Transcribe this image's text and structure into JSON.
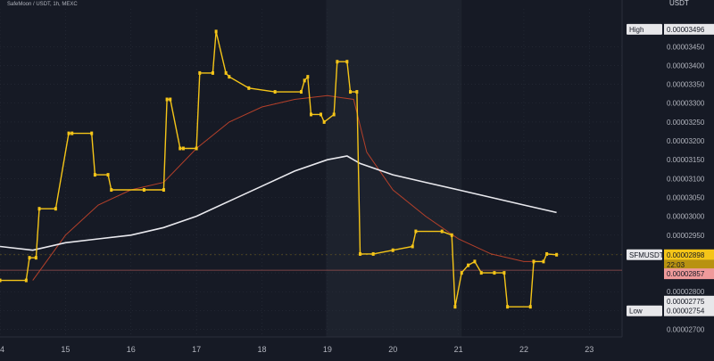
{
  "header": {
    "symbol_line": "SafeMoon / USDT, 1h, MEXC",
    "quote_currency": "USDT"
  },
  "colors": {
    "background": "#161a25",
    "background_highlight": "#1d222d",
    "candle": "#f5c518",
    "ma_fast": "#b5402a",
    "ma_slow": "#e9e9ee",
    "last_price_tag": "#f5c518",
    "ref_price_tag": "#ef9a9a",
    "grid_dots": "#2a2f3b",
    "axis_text": "#b2b5be"
  },
  "chart_data": {
    "type": "line",
    "title": "",
    "xlabel": "",
    "ylabel": "",
    "x_ticks": [
      "14",
      "15",
      "16",
      "17",
      "18",
      "19",
      "20",
      "21",
      "22",
      "23"
    ],
    "y_ticks": [
      "0.00002700",
      "0.00002750",
      "0.00002800",
      "0.00002850",
      "0.00002900",
      "0.00002950",
      "0.00003000",
      "0.00003050",
      "0.00003100",
      "0.00003150",
      "0.00003200",
      "0.00003250",
      "0.00003300",
      "0.00003350",
      "0.00003400",
      "0.00003450"
    ],
    "ylim": [
      2.68e-05,
      3.55e-05
    ],
    "xlim": [
      14,
      23.5
    ],
    "series": [
      {
        "kind": "price",
        "x": [
          14.0,
          14.4,
          14.45,
          14.55,
          14.6,
          14.85,
          15.05,
          15.1,
          15.4,
          15.45,
          15.65,
          15.7,
          16.2,
          16.5,
          16.55,
          16.6,
          16.75,
          16.8,
          17.0,
          17.05,
          17.25,
          17.3,
          17.45,
          17.5,
          17.8,
          18.2,
          18.6,
          18.65,
          18.7,
          18.75,
          18.9,
          18.95,
          19.1,
          19.15,
          19.3,
          19.35,
          19.45,
          19.5,
          19.7,
          20.0,
          20.3,
          20.35,
          20.75,
          20.9,
          20.95,
          21.05,
          21.15,
          21.25,
          21.35,
          21.55,
          21.7,
          21.75,
          22.1,
          22.15,
          22.3,
          22.35,
          22.5
        ],
        "values": [
          2.83e-05,
          2.83e-05,
          2.89e-05,
          2.89e-05,
          3.02e-05,
          3.02e-05,
          3.22e-05,
          3.22e-05,
          3.22e-05,
          3.11e-05,
          3.11e-05,
          3.07e-05,
          3.07e-05,
          3.07e-05,
          3.31e-05,
          3.31e-05,
          3.18e-05,
          3.18e-05,
          3.18e-05,
          3.38e-05,
          3.38e-05,
          3.49e-05,
          3.38e-05,
          3.37e-05,
          3.34e-05,
          3.33e-05,
          3.33e-05,
          3.36e-05,
          3.37e-05,
          3.27e-05,
          3.27e-05,
          3.25e-05,
          3.27e-05,
          3.41e-05,
          3.41e-05,
          3.33e-05,
          3.33e-05,
          2.9e-05,
          2.9e-05,
          2.91e-05,
          2.92e-05,
          2.96e-05,
          2.96e-05,
          2.95e-05,
          2.76e-05,
          2.85e-05,
          2.87e-05,
          2.88e-05,
          2.85e-05,
          2.85e-05,
          2.85e-05,
          2.76e-05,
          2.76e-05,
          2.88e-05,
          2.88e-05,
          2.9e-05,
          2.898e-05
        ]
      },
      {
        "kind": "ma_fast",
        "x": [
          14.5,
          15.0,
          15.5,
          16.0,
          16.5,
          17.0,
          17.5,
          18.0,
          18.5,
          19.0,
          19.4,
          19.6,
          20.0,
          20.5,
          21.0,
          21.5,
          22.0,
          22.3
        ],
        "values": [
          2.83e-05,
          2.95e-05,
          3.03e-05,
          3.07e-05,
          3.09e-05,
          3.18e-05,
          3.25e-05,
          3.29e-05,
          3.31e-05,
          3.32e-05,
          3.31e-05,
          3.17e-05,
          3.07e-05,
          3e-05,
          2.94e-05,
          2.9e-05,
          2.88e-05,
          2.88e-05
        ]
      },
      {
        "kind": "ma_slow",
        "x": [
          14.0,
          14.5,
          15.0,
          15.5,
          16.0,
          16.5,
          17.0,
          17.5,
          18.0,
          18.5,
          19.0,
          19.3,
          19.5,
          20.0,
          20.5,
          21.0,
          21.5,
          22.0,
          22.5
        ],
        "values": [
          2.92e-05,
          2.91e-05,
          2.93e-05,
          2.94e-05,
          2.95e-05,
          2.97e-05,
          3e-05,
          3.04e-05,
          3.08e-05,
          3.12e-05,
          3.15e-05,
          3.16e-05,
          3.14e-05,
          3.11e-05,
          3.09e-05,
          3.07e-05,
          3.05e-05,
          3.03e-05,
          3.01e-05
        ]
      }
    ],
    "price_labels": {
      "high_label": "High",
      "high_value": "0.00003496",
      "symbol_label": "SFMUSDT",
      "last_value": "0.00002898",
      "countdown": "22:03",
      "ref_value": "0.00002857",
      "value_2775": "0.00002775",
      "low_label": "Low",
      "low_value": "0.00002754"
    },
    "levels": {
      "high": 3.496e-05,
      "last": 2.898e-05,
      "ref": 2.857e-05,
      "l2775": 2.775e-05,
      "low": 2.754e-05
    },
    "highlight_ranges": [
      [
        18.98,
        21.05
      ]
    ],
    "grid": true,
    "legend": ""
  }
}
